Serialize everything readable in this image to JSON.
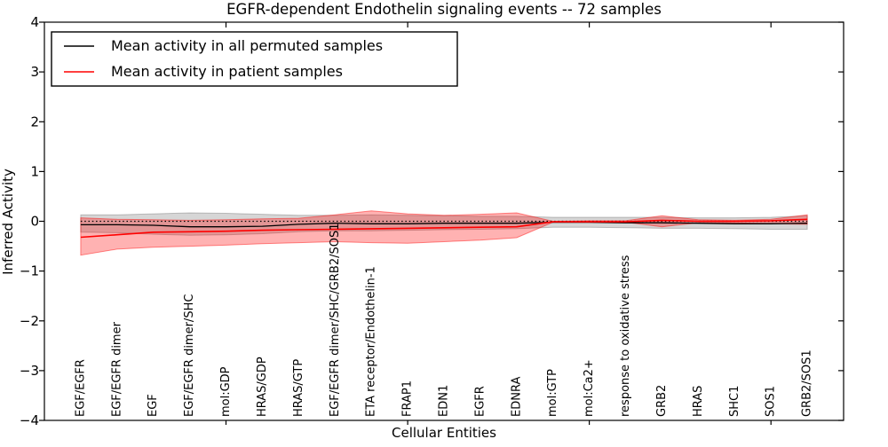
{
  "figure": {
    "title": "EGFR-dependent Endothelin signaling events -- 72 samples",
    "xlabel": "Cellular Entities",
    "ylabel": "Inferred Activity"
  },
  "legend": {
    "items": [
      {
        "label": "Mean activity in all permuted samples",
        "color": "#000000"
      },
      {
        "label": "Mean activity in patient samples",
        "color": "#ff0000"
      }
    ]
  },
  "chart_data": {
    "type": "line",
    "title": "EGFR-dependent Endothelin signaling events -- 72 samples",
    "xlabel": "Cellular Entities",
    "ylabel": "Inferred Activity",
    "ylim": [
      -4,
      4
    ],
    "yticks": [
      -4,
      -3,
      -2,
      -1,
      0,
      1,
      2,
      3,
      4
    ],
    "xticks_major_indices": [
      4,
      9,
      14,
      19
    ],
    "grid": false,
    "legend_position": "upper left",
    "zero_line": {
      "y": 0,
      "style": "dotted",
      "color": "#000000"
    },
    "categories": [
      "EGF/EGFR",
      "EGF/EGFR dimer",
      "EGF",
      "EGF/EGFR dimer/SHC",
      "mol:GDP",
      "HRAS/GDP",
      "HRAS/GTP",
      "EGF/EGFR dimer/SHC/GRB2/SOS1",
      "ETA receptor/Endothelin-1",
      "FRAP1",
      "EDN1",
      "EGFR",
      "EDNRA",
      "mol:GTP",
      "mol:Ca2+",
      "response to oxidative stress",
      "GRB2",
      "HRAS",
      "SHC1",
      "SOS1",
      "GRB2/SOS1"
    ],
    "series": [
      {
        "name": "Mean activity in all permuted samples",
        "color": "#000000",
        "line_width": 1.3,
        "values": [
          -0.07,
          -0.07,
          -0.08,
          -0.11,
          -0.11,
          -0.1,
          -0.06,
          -0.04,
          -0.05,
          -0.05,
          -0.04,
          -0.04,
          -0.04,
          -0.02,
          -0.02,
          -0.03,
          -0.03,
          -0.04,
          -0.05,
          -0.05,
          -0.04
        ],
        "band_upper": [
          0.13,
          0.13,
          0.15,
          0.17,
          0.16,
          0.14,
          0.12,
          0.12,
          0.13,
          0.12,
          0.11,
          0.1,
          0.1,
          0.08,
          0.08,
          0.08,
          0.08,
          0.07,
          0.07,
          0.08,
          0.11
        ],
        "band_lower": [
          -0.22,
          -0.23,
          -0.26,
          -0.28,
          -0.27,
          -0.25,
          -0.21,
          -0.19,
          -0.19,
          -0.18,
          -0.17,
          -0.16,
          -0.15,
          -0.12,
          -0.12,
          -0.13,
          -0.14,
          -0.14,
          -0.15,
          -0.16,
          -0.16
        ],
        "band_fill": "rgba(0,0,0,0.16)",
        "band_edge": "rgba(0,0,0,0.22)"
      },
      {
        "name": "Mean activity in patient samples",
        "color": "#ff0000",
        "line_width": 1.6,
        "values": [
          -0.32,
          -0.27,
          -0.22,
          -0.21,
          -0.2,
          -0.18,
          -0.17,
          -0.16,
          -0.15,
          -0.14,
          -0.13,
          -0.12,
          -0.11,
          -0.01,
          -0.01,
          -0.01,
          0.02,
          0.0,
          0.0,
          0.01,
          0.04
        ],
        "band_upper": [
          0.07,
          0.04,
          0.03,
          0.02,
          0.03,
          0.05,
          0.06,
          0.13,
          0.21,
          0.15,
          0.12,
          0.14,
          0.17,
          0.0,
          0.01,
          0.01,
          0.11,
          0.03,
          0.02,
          0.04,
          0.13
        ],
        "band_lower": [
          -0.68,
          -0.56,
          -0.52,
          -0.5,
          -0.48,
          -0.45,
          -0.43,
          -0.41,
          -0.43,
          -0.44,
          -0.41,
          -0.38,
          -0.33,
          -0.02,
          -0.02,
          -0.02,
          -0.11,
          -0.03,
          -0.03,
          -0.05,
          -0.06
        ],
        "band_fill": "rgba(255,0,0,0.30)",
        "band_edge": "rgba(255,0,0,0.45)"
      }
    ]
  }
}
